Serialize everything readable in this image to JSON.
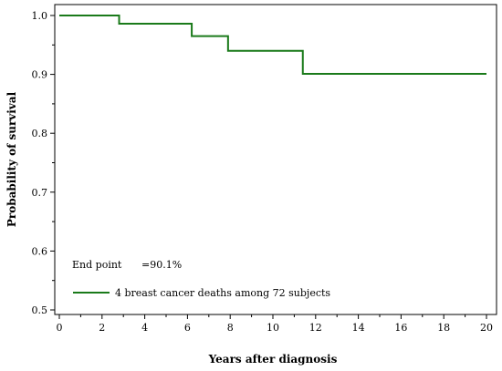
{
  "chart_data": {
    "type": "line",
    "step": true,
    "xlabel": "Years after diagnosis",
    "ylabel": "Probability of survival",
    "xlim": [
      0,
      20
    ],
    "ylim": [
      0.5,
      1.0
    ],
    "x_ticks": [
      0,
      2,
      4,
      6,
      8,
      10,
      12,
      14,
      16,
      18,
      20
    ],
    "y_ticks": [
      0.5,
      0.6,
      0.7,
      0.8,
      0.9,
      1.0
    ],
    "y_tick_labels": [
      "0.5",
      "0.6",
      "0.7",
      "0.8",
      "0.9",
      "1.0"
    ],
    "grid": false,
    "series": [
      {
        "name": "4 breast cancer deaths among 72 subjects",
        "color": "#1a7a1a",
        "x": [
          0,
          2.8,
          6.2,
          7.9,
          11.4,
          20
        ],
        "y": [
          1.0,
          0.986,
          0.965,
          0.94,
          0.901,
          0.901
        ]
      }
    ],
    "annotation": {
      "label": "End point",
      "value": "=90.1%"
    },
    "legend_position": "bottom-left"
  }
}
